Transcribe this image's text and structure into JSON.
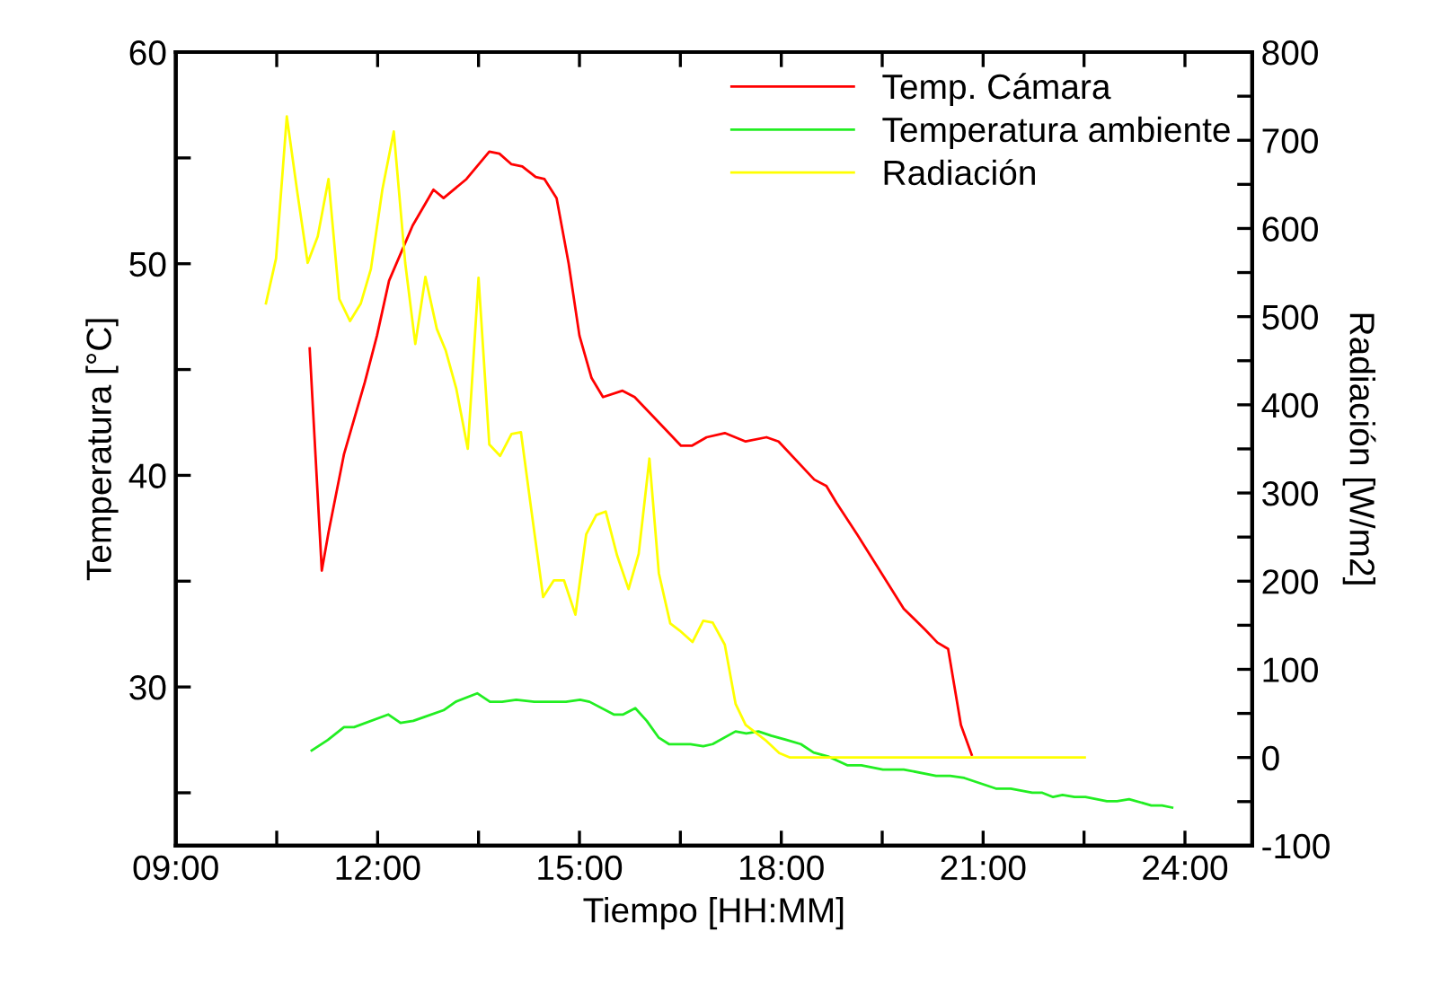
{
  "chart_data": {
    "type": "line",
    "xlabel": "Tiempo [HH:MM]",
    "ylabel": "Temperatura [°C]",
    "y2label": "Radiación [W/m2]",
    "xlim": [
      9,
      25
    ],
    "xticks": [
      {
        "value": 9,
        "label": "09:00"
      },
      {
        "value": 10.5,
        "label": null
      },
      {
        "value": 12,
        "label": "12:00"
      },
      {
        "value": 13.5,
        "label": null
      },
      {
        "value": 15,
        "label": "15:00"
      },
      {
        "value": 16.5,
        "label": null
      },
      {
        "value": 18,
        "label": "18:00"
      },
      {
        "value": 19.5,
        "label": null
      },
      {
        "value": 21,
        "label": "21:00"
      },
      {
        "value": 22.5,
        "label": null
      },
      {
        "value": 24,
        "label": "24:00"
      }
    ],
    "ylim": [
      22.5,
      60
    ],
    "yticks": [
      {
        "value": 25,
        "label": null
      },
      30,
      {
        "value": 35,
        "label": null
      },
      40,
      {
        "value": 45,
        "label": null
      },
      50,
      {
        "value": 55,
        "label": null
      },
      60
    ],
    "y2lim": [
      -100,
      800
    ],
    "y2ticks": [
      -100,
      {
        "value": -50,
        "label": null
      },
      0,
      {
        "value": 50,
        "label": null
      },
      100,
      {
        "value": 150,
        "label": null
      },
      200,
      {
        "value": 250,
        "label": null
      },
      300,
      {
        "value": 350,
        "label": null
      },
      400,
      {
        "value": 450,
        "label": null
      },
      500,
      {
        "value": 550,
        "label": null
      },
      600,
      {
        "value": 650,
        "label": null
      },
      700,
      {
        "value": 750,
        "label": null
      },
      800
    ],
    "legend": "top right",
    "grid": false,
    "marker": "none",
    "line_style": "solid",
    "series": [
      {
        "name": "Temp. Cámara",
        "color": "#ff0000",
        "x": [
          10.99,
          11.17,
          11.27,
          11.5,
          11.81,
          11.99,
          12.17,
          12.52,
          12.83,
          12.98,
          13.32,
          13.66,
          13.81,
          13.99,
          14.15,
          14.35,
          14.48,
          14.66,
          14.84,
          15.0,
          15.18,
          15.35,
          15.64,
          15.82,
          16.18,
          16.51,
          16.67,
          16.89,
          17.16,
          17.47,
          17.78,
          17.96,
          18.49,
          18.67,
          18.82,
          19.13,
          19.82,
          20.14,
          20.32,
          20.48,
          20.67,
          20.83
        ],
        "values": [
          46.0,
          35.5,
          37.3,
          41.0,
          44.4,
          46.6,
          49.2,
          51.8,
          53.5,
          53.1,
          54.0,
          55.3,
          55.2,
          54.7,
          54.6,
          54.1,
          54.0,
          53.1,
          50.0,
          46.6,
          44.6,
          43.7,
          44.0,
          43.7,
          42.5,
          41.4,
          41.4,
          41.8,
          42.0,
          41.6,
          41.8,
          41.6,
          39.8,
          39.5,
          38.7,
          37.2,
          33.7,
          32.7,
          32.1,
          31.8,
          28.2,
          26.8
        ]
      },
      {
        "name": "Temperatura ambiente",
        "color": "#22ee22",
        "x": [
          11.02,
          11.26,
          11.5,
          11.65,
          12.16,
          12.34,
          12.53,
          12.71,
          12.98,
          13.16,
          13.48,
          13.67,
          13.85,
          14.06,
          14.33,
          14.8,
          15.01,
          15.15,
          15.51,
          15.65,
          15.83,
          16.0,
          16.18,
          16.33,
          16.65,
          16.84,
          16.98,
          17.32,
          17.48,
          17.66,
          17.85,
          18.08,
          18.29,
          18.48,
          18.71,
          18.98,
          19.19,
          19.51,
          19.82,
          20.3,
          20.51,
          20.72,
          21.19,
          21.41,
          21.73,
          21.88,
          22.04,
          22.18,
          22.36,
          22.52,
          22.84,
          22.99,
          23.17,
          23.5,
          23.66,
          23.81
        ],
        "values": [
          27.0,
          27.5,
          28.1,
          28.1,
          28.7,
          28.3,
          28.4,
          28.6,
          28.9,
          29.3,
          29.7,
          29.3,
          29.3,
          29.4,
          29.3,
          29.3,
          29.4,
          29.3,
          28.7,
          28.7,
          29.0,
          28.4,
          27.6,
          27.3,
          27.3,
          27.2,
          27.3,
          27.9,
          27.8,
          27.9,
          27.7,
          27.5,
          27.3,
          26.9,
          26.7,
          26.3,
          26.3,
          26.1,
          26.1,
          25.8,
          25.8,
          25.7,
          25.2,
          25.2,
          25.0,
          25.0,
          24.8,
          24.9,
          24.8,
          24.8,
          24.6,
          24.6,
          24.7,
          24.4,
          24.4,
          24.3
        ]
      },
      {
        "name": "Radiación",
        "color": "#ffff00",
        "axis": "y2",
        "x": [
          10.34,
          10.49,
          10.65,
          10.81,
          10.96,
          11.11,
          11.27,
          11.43,
          11.59,
          11.75,
          11.9,
          12.07,
          12.24,
          12.41,
          12.56,
          12.71,
          12.88,
          13.01,
          13.17,
          13.34,
          13.5,
          13.66,
          13.82,
          13.99,
          14.13,
          14.27,
          14.46,
          14.62,
          14.77,
          14.94,
          15.1,
          15.25,
          15.39,
          15.56,
          15.73,
          15.88,
          16.04,
          16.18,
          16.35,
          16.49,
          16.68,
          16.84,
          16.98,
          17.16,
          17.32,
          17.47,
          17.76,
          17.97,
          18.13,
          22.51
        ],
        "values": [
          515,
          566,
          727,
          639,
          561,
          591,
          656,
          520,
          495,
          515,
          554,
          644,
          710,
          561,
          469,
          545,
          486,
          462,
          418,
          350,
          544,
          355,
          342,
          367,
          369,
          289,
          182,
          201,
          201,
          162,
          253,
          275,
          279,
          229,
          191,
          231,
          339,
          209,
          152,
          144,
          131,
          155,
          153,
          128,
          61,
          37,
          20,
          5,
          0,
          0
        ]
      }
    ]
  }
}
